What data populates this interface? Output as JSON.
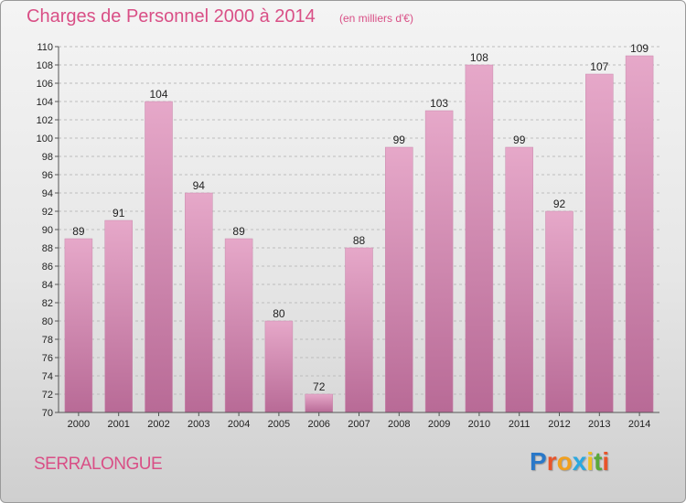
{
  "title": "Charges de Personnel 2000 à 2014",
  "subtitle": "(en milliers d'€)",
  "commune": "SERRALONGUE",
  "logo": {
    "letters": [
      "P",
      "r",
      "o",
      "x",
      "i",
      "t",
      "i"
    ],
    "colors": [
      "#2a78c8",
      "#e8542a",
      "#f0a020",
      "#2aa8e0",
      "#f0c020",
      "#5aa83a",
      "#e8542a"
    ]
  },
  "colors": {
    "accent": "#d94f86",
    "bar_top": "#e6a8c9",
    "bar_bottom": "#b86a96",
    "grid": "#bdbdbd",
    "axis_text": "#222222"
  },
  "chart_data": {
    "type": "bar",
    "categories": [
      "2000",
      "2001",
      "2002",
      "2003",
      "2004",
      "2005",
      "2006",
      "2007",
      "2008",
      "2009",
      "2010",
      "2011",
      "2012",
      "2013",
      "2014"
    ],
    "values": [
      89,
      91,
      104,
      94,
      89,
      80,
      72,
      88,
      99,
      103,
      108,
      99,
      92,
      107,
      109
    ],
    "ylim": [
      70,
      110
    ],
    "yticks": [
      70,
      72,
      74,
      76,
      78,
      80,
      82,
      84,
      86,
      88,
      90,
      92,
      94,
      96,
      98,
      100,
      102,
      104,
      106,
      108,
      110
    ],
    "grid": true,
    "data_labels": true
  }
}
